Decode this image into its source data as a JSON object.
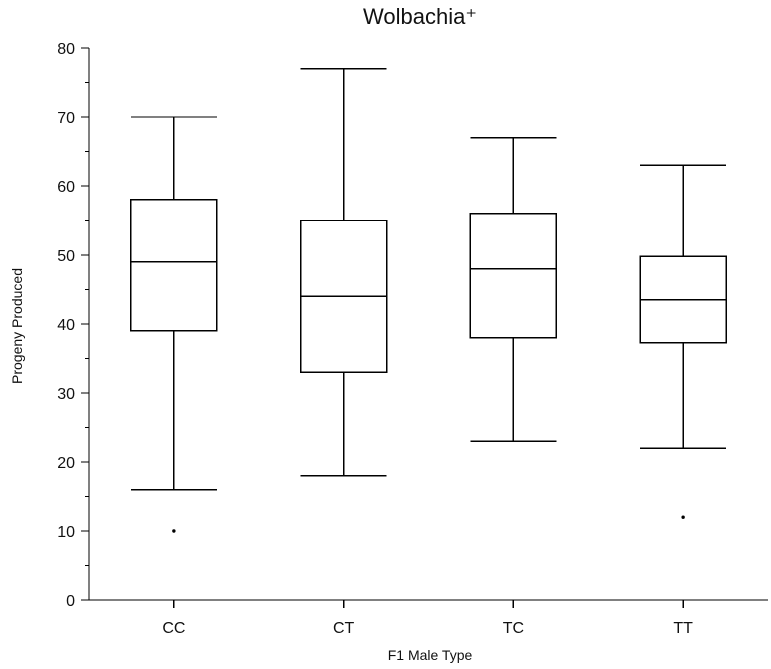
{
  "chart_data": {
    "type": "box",
    "title": "Wolbachia⁺",
    "xlabel": "F1 Male Type",
    "ylabel": "Progeny Produced",
    "categories": [
      "CC",
      "CT",
      "TC",
      "TT"
    ],
    "boxes": [
      {
        "category": "CC",
        "whisker_low": 16,
        "q1": 39,
        "median": 49,
        "q3": 58,
        "whisker_high": 70,
        "outliers": [
          10
        ]
      },
      {
        "category": "CT",
        "whisker_low": 18,
        "q1": 33,
        "median": 44,
        "q3": 55,
        "whisker_high": 77,
        "outliers": []
      },
      {
        "category": "TC",
        "whisker_low": 23,
        "q1": 38,
        "median": 48,
        "q3": 56,
        "whisker_high": 67,
        "outliers": []
      },
      {
        "category": "TT",
        "whisker_low": 22,
        "q1": 37.3,
        "median": 43.5,
        "q3": 49.8,
        "whisker_high": 63,
        "outliers": [
          12
        ]
      }
    ],
    "ylim": [
      0,
      80
    ],
    "yticks": [
      0,
      10,
      20,
      30,
      40,
      50,
      60,
      70,
      80
    ],
    "grid": false,
    "legend": "none"
  }
}
